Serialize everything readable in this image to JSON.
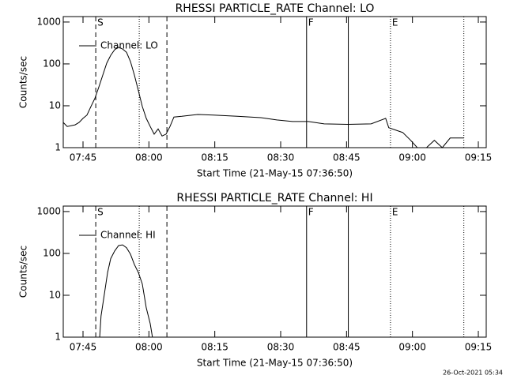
{
  "chart_data": [
    {
      "type": "line",
      "title": "RHESSI PARTICLE_RATE Channel: LO",
      "xlabel": "Start Time (21-May-15 07:36:50)",
      "ylabel": "Counts/sec",
      "log_y": true,
      "legend": "top-left",
      "ylim": [
        1,
        1350
      ],
      "yticks": [
        1,
        10,
        100,
        1000
      ],
      "xlim": [
        460.5,
        556.8
      ],
      "xticks": [
        {
          "value": 465,
          "label": "07:45"
        },
        {
          "value": 480,
          "label": "08:00"
        },
        {
          "value": 495,
          "label": "08:15"
        },
        {
          "value": 510,
          "label": "08:30"
        },
        {
          "value": 525,
          "label": "08:45"
        },
        {
          "value": 540,
          "label": "09:00"
        },
        {
          "value": 555,
          "label": "09:15"
        }
      ],
      "markers": [
        {
          "x": 467.9,
          "style": "dashed",
          "label": "S"
        },
        {
          "x": 477.8,
          "style": "dotted"
        },
        {
          "x": 484.1,
          "style": "dashed"
        },
        {
          "x": 515.9,
          "style": "solid",
          "label": "F"
        },
        {
          "x": 525.4,
          "style": "solid"
        },
        {
          "x": 535.0,
          "style": "dotted",
          "label": "E"
        },
        {
          "x": 551.7,
          "style": "dotted"
        }
      ],
      "series": [
        {
          "name": "Channel: LO",
          "color": "#000000",
          "x": [
            460.5,
            461.4,
            463.2,
            464.1,
            465.0,
            465.9,
            466.8,
            467.7,
            468.6,
            469.5,
            470.4,
            471.3,
            472.2,
            473.1,
            474.0,
            474.9,
            475.8,
            476.7,
            477.6,
            478.5,
            479.4,
            480.3,
            481.2,
            482.1,
            483.0,
            483.9,
            484.8,
            485.7,
            487.5,
            491.1,
            494.7,
            500.1,
            505.5,
            509.1,
            512.7,
            516.3,
            519.9,
            525.3,
            530.6,
            533.9,
            534.6,
            537.8,
            539.6,
            541.1,
            543.2,
            545.0,
            546.8,
            548.6,
            551.7
          ],
          "values": [
            4,
            3.2,
            3.5,
            4,
            5,
            6,
            9.6,
            15,
            28,
            54,
            104,
            160,
            218,
            250,
            228,
            190,
            114,
            54,
            23,
            9.6,
            5,
            3.2,
            2.1,
            2.8,
            1.9,
            2.1,
            3.2,
            5.4,
            5.6,
            6.2,
            6,
            5.6,
            5.2,
            4.6,
            4.2,
            4.2,
            3.7,
            3.6,
            3.7,
            5,
            3,
            2.3,
            1.5,
            1,
            1,
            1.5,
            1,
            1.7,
            1.7
          ]
        }
      ]
    },
    {
      "type": "line",
      "title": "RHESSI PARTICLE_RATE Channel: HI",
      "xlabel": "Start Time (21-May-15 07:36:50)",
      "ylabel": "Counts/sec",
      "log_y": true,
      "legend": "top-left",
      "ylim": [
        1,
        1350
      ],
      "yticks": [
        1,
        10,
        100,
        1000
      ],
      "xlim": [
        460.5,
        556.8
      ],
      "xticks": [
        {
          "value": 465,
          "label": "07:45"
        },
        {
          "value": 480,
          "label": "08:00"
        },
        {
          "value": 495,
          "label": "08:15"
        },
        {
          "value": 510,
          "label": "08:30"
        },
        {
          "value": 525,
          "label": "08:45"
        },
        {
          "value": 540,
          "label": "09:00"
        },
        {
          "value": 555,
          "label": "09:15"
        }
      ],
      "markers": [
        {
          "x": 467.9,
          "style": "dashed",
          "label": "S"
        },
        {
          "x": 477.8,
          "style": "dotted"
        },
        {
          "x": 484.1,
          "style": "dashed"
        },
        {
          "x": 515.9,
          "style": "solid",
          "label": "F"
        },
        {
          "x": 525.4,
          "style": "solid"
        },
        {
          "x": 535.0,
          "style": "dotted",
          "label": "E"
        },
        {
          "x": 551.7,
          "style": "dotted"
        }
      ],
      "series": [
        {
          "name": "Channel: HI",
          "color": "#000000",
          "x": [
            468.8,
            469.1,
            469.9,
            470.6,
            471.3,
            472.2,
            473.1,
            474.0,
            474.9,
            475.8,
            476.7,
            477.6,
            478.5,
            479.4,
            480.3,
            480.8
          ],
          "values": [
            1,
            3.2,
            11.3,
            35,
            75,
            114,
            154,
            160,
            137,
            96,
            54,
            35,
            18.6,
            5,
            2.1,
            1
          ]
        }
      ]
    }
  ],
  "footer": "26-Oct-2021 05:34"
}
